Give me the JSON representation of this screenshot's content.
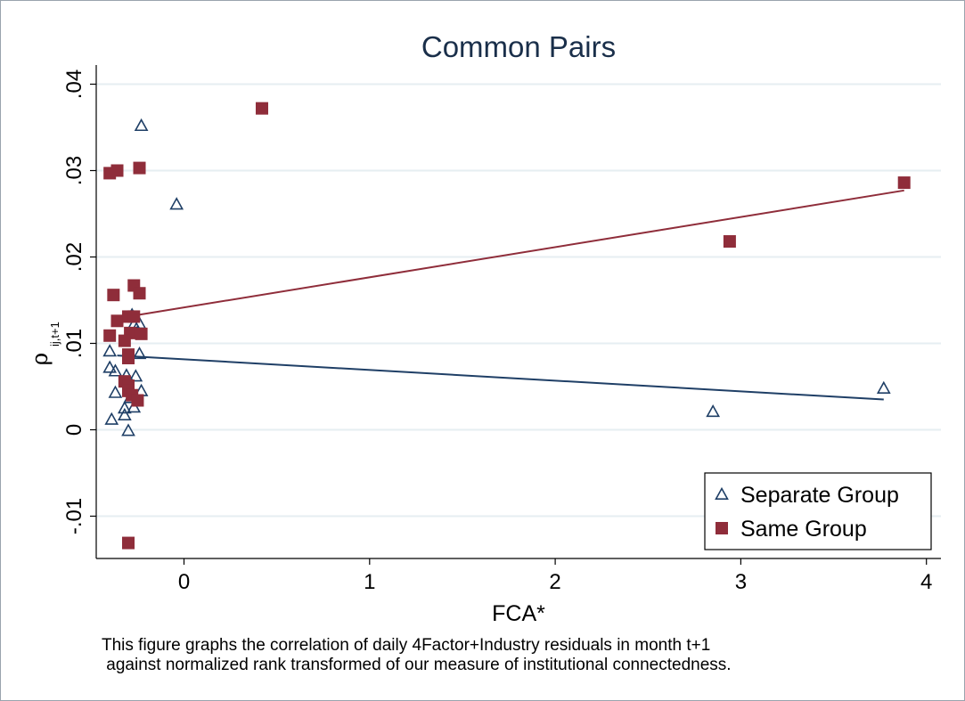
{
  "chart_data": {
    "type": "scatter",
    "title": "Common Pairs",
    "xlabel": "FCA*",
    "ylabel": "ρ",
    "ylabel_subscript": "ij,t+1",
    "xlim": [
      -0.48,
      4.05
    ],
    "ylim": [
      -0.0148,
      0.0418
    ],
    "x_ticks": [
      0,
      1,
      2,
      3,
      4
    ],
    "x_tick_labels": [
      "0",
      "1",
      "2",
      "3",
      "4"
    ],
    "y_ticks": [
      -0.01,
      0,
      0.01,
      0.02,
      0.03,
      0.04
    ],
    "y_tick_labels": [
      "-.01",
      "0",
      ".01",
      ".02",
      ".03",
      ".04"
    ],
    "grid": true,
    "legend_position": "bottom-right",
    "series": [
      {
        "name": "Separate Group",
        "marker": "triangle",
        "color": "#1f3f66",
        "points": [
          [
            -0.23,
            0.0352
          ],
          [
            -0.04,
            0.0261
          ],
          [
            -0.4,
            0.0091
          ],
          [
            -0.4,
            0.0072
          ],
          [
            -0.37,
            0.0068
          ],
          [
            -0.37,
            0.0043
          ],
          [
            -0.39,
            0.0012
          ],
          [
            -0.32,
            0.0017
          ],
          [
            -0.32,
            0.0025
          ],
          [
            -0.3,
            -0.0001
          ],
          [
            -0.31,
            0.0063
          ],
          [
            -0.28,
            0.0133
          ],
          [
            -0.27,
            0.0122
          ],
          [
            -0.24,
            0.0123
          ],
          [
            -0.24,
            0.0088
          ],
          [
            -0.26,
            0.0062
          ],
          [
            -0.23,
            0.0045
          ],
          [
            -0.27,
            0.0026
          ],
          [
            -0.29,
            0.0037
          ],
          [
            -0.25,
            0.0113
          ],
          [
            2.85,
            0.0021
          ],
          [
            3.77,
            0.0048
          ]
        ]
      },
      {
        "name": "Same Group",
        "marker": "square",
        "color": "#8f2d3a",
        "points": [
          [
            0.42,
            0.0372
          ],
          [
            -0.4,
            0.0297
          ],
          [
            -0.36,
            0.03
          ],
          [
            -0.24,
            0.0303
          ],
          [
            3.88,
            0.0286
          ],
          [
            2.94,
            0.0218
          ],
          [
            -0.27,
            0.0167
          ],
          [
            -0.38,
            0.0156
          ],
          [
            -0.24,
            0.0158
          ],
          [
            -0.36,
            0.0126
          ],
          [
            -0.3,
            0.0131
          ],
          [
            -0.27,
            0.0131
          ],
          [
            -0.4,
            0.0109
          ],
          [
            -0.29,
            0.0112
          ],
          [
            -0.23,
            0.0111
          ],
          [
            -0.32,
            0.0103
          ],
          [
            -0.3,
            0.0087
          ],
          [
            -0.3,
            0.0083
          ],
          [
            -0.32,
            0.0056
          ],
          [
            -0.3,
            0.0051
          ],
          [
            -0.3,
            0.0045
          ],
          [
            -0.28,
            0.004
          ],
          [
            -0.25,
            0.0034
          ],
          [
            -0.3,
            -0.0131
          ]
        ]
      }
    ],
    "fit_lines": [
      {
        "series": "Same Group",
        "color": "#8f2d3a",
        "x": [
          -0.36,
          3.88
        ],
        "y": [
          0.0129,
          0.0277
        ]
      },
      {
        "series": "Separate Group",
        "color": "#1f3f66",
        "x": [
          -0.36,
          3.77
        ],
        "y": [
          0.0086,
          0.0035
        ]
      }
    ]
  },
  "note": {
    "line1": "This figure graphs the correlation of daily 4Factor+Industry residuals in month t+1",
    "line2": " against normalized rank transformed of our measure of institutional connectedness."
  }
}
